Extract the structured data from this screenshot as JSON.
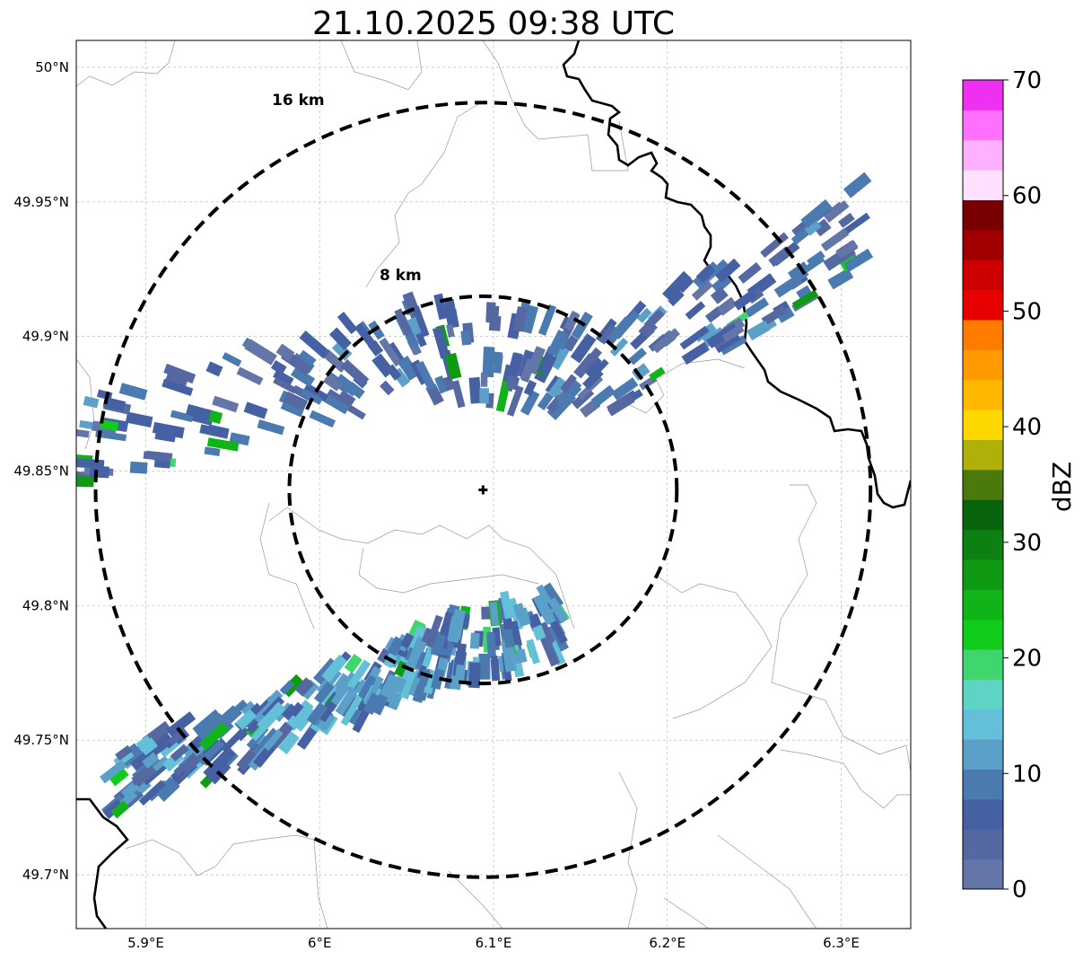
{
  "title": "21.10.2025 09:38 UTC",
  "map": {
    "lon_range": [
      5.86,
      6.34
    ],
    "lat_range": [
      49.68,
      50.01
    ],
    "lon_ticks": [
      {
        "value": 5.9,
        "label": "5.9°E"
      },
      {
        "value": 6.0,
        "label": "6°E"
      },
      {
        "value": 6.1,
        "label": "6.1°E"
      },
      {
        "value": 6.2,
        "label": "6.2°E"
      },
      {
        "value": 6.3,
        "label": "6.3°E"
      }
    ],
    "lat_ticks": [
      {
        "value": 50.0,
        "label": "50°N"
      },
      {
        "value": 49.95,
        "label": "49.95°N"
      },
      {
        "value": 49.9,
        "label": "49.9°N"
      },
      {
        "value": 49.85,
        "label": "49.85°N"
      },
      {
        "value": 49.8,
        "label": "49.8°N"
      },
      {
        "value": 49.75,
        "label": "49.75°N"
      },
      {
        "value": 49.7,
        "label": "49.7°N"
      }
    ],
    "radar_site": {
      "lon": 6.094,
      "lat": 49.843
    },
    "range_rings": [
      {
        "radius_km": 8,
        "label": "8 km"
      },
      {
        "radius_km": 16,
        "label": "16 km"
      }
    ],
    "gridlines": true
  },
  "colorbar": {
    "label": "dBZ",
    "min": 0,
    "max": 70,
    "ticks": [
      {
        "value": 0,
        "label": "0"
      },
      {
        "value": 10,
        "label": "10"
      },
      {
        "value": 20,
        "label": "20"
      },
      {
        "value": 30,
        "label": "30"
      },
      {
        "value": 40,
        "label": "40"
      },
      {
        "value": 50,
        "label": "50"
      },
      {
        "value": 60,
        "label": "60"
      },
      {
        "value": 70,
        "label": "70"
      }
    ],
    "colors": [
      "#6476a8",
      "#5568a2",
      "#4561a4",
      "#4a7ab0",
      "#5aa0c8",
      "#63c0d8",
      "#5dd4c4",
      "#3fd66e",
      "#12cc1c",
      "#10b418",
      "#0f9a14",
      "#0c8010",
      "#08640c",
      "#4a7a0c",
      "#b0b00a",
      "#ffd800",
      "#ffb800",
      "#ff9a00",
      "#ff7c00",
      "#e80000",
      "#cc0000",
      "#a00000",
      "#780000",
      "#ffe0ff",
      "#ffb0ff",
      "#ff70ff",
      "#f030f0"
    ]
  },
  "echo_bands": [
    {
      "name": "northwest-band",
      "lon": [
        5.86,
        6.05,
        6.17,
        6.31
      ],
      "lat": [
        49.86,
        49.895,
        49.89,
        49.94
      ],
      "width_deg": 0.022,
      "mean_dbz": 6
    },
    {
      "name": "southwest-band",
      "lon": [
        5.88,
        5.97,
        6.06,
        6.14
      ],
      "lat": [
        49.735,
        49.755,
        49.78,
        49.795
      ],
      "width_deg": 0.015,
      "mean_dbz": 9
    }
  ]
}
